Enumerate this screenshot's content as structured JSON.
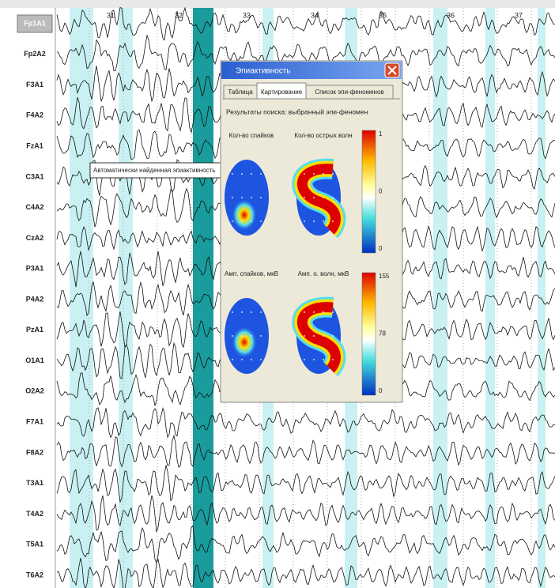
{
  "channels": [
    "Fp1A1",
    "Fp2A2",
    "F3A1",
    "F4A2",
    "FzA1",
    "C3A1",
    "C4A2",
    "CzA2",
    "P3A1",
    "P4A2",
    "PzA1",
    "O1A1",
    "O2A2",
    "F7A1",
    "F8A2",
    "T3A1",
    "T4A2",
    "T5A1",
    "T6A2"
  ],
  "time_marks": [
    "31",
    "32",
    "33",
    "34",
    "35",
    "36",
    "37"
  ],
  "tooltip": "Автоматически найденная эпиактивность",
  "dialog": {
    "title": "Эпиактивность",
    "tabs": [
      "Таблица",
      "Картирование",
      "Список эпи-феноменов"
    ],
    "caption": "Результаты поиска: выбранный эпи-феномен",
    "maps": [
      "Кол-во спайков",
      "Кол-во острых волн",
      "Амп. спайков, мкВ",
      "Амп. о. волн, мкВ"
    ],
    "scales": [
      [
        "1",
        "0",
        "0"
      ],
      [
        "155",
        "78",
        "0"
      ]
    ]
  }
}
